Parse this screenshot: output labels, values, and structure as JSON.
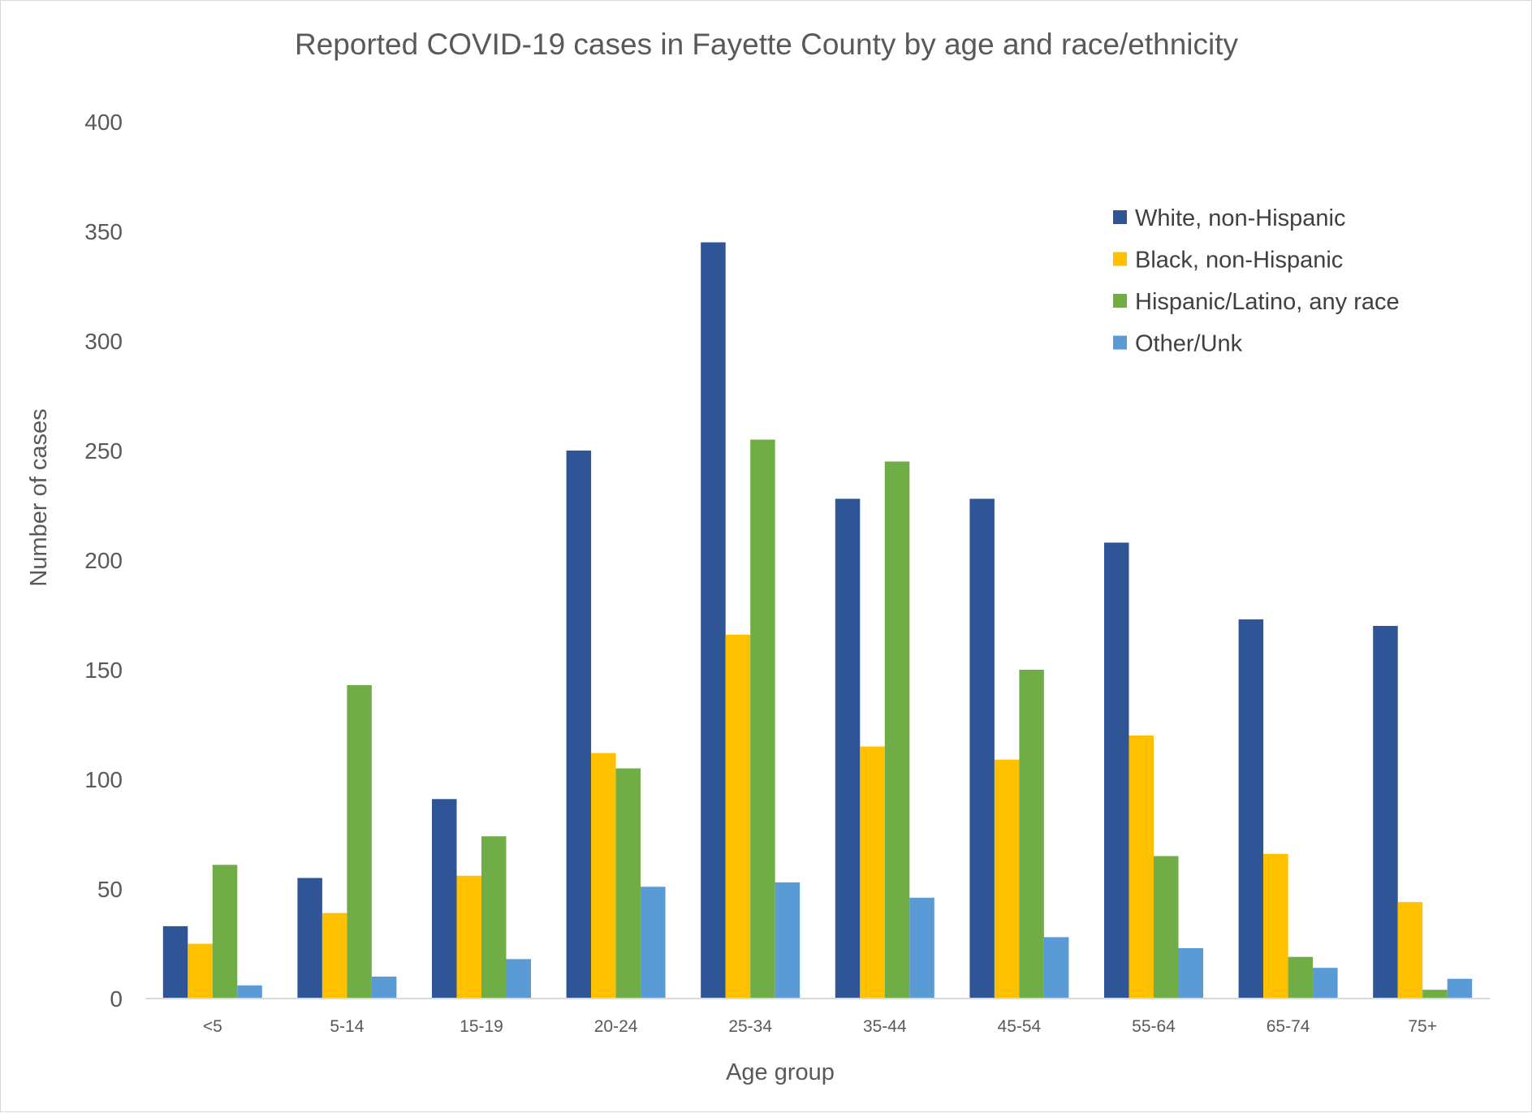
{
  "chart_data": {
    "type": "bar",
    "title": "Reported COVID-19 cases in Fayette County by age and race/ethnicity",
    "xlabel": "Age group",
    "ylabel": "Number of cases",
    "ylim": [
      0,
      400
    ],
    "yticks": [
      0,
      50,
      100,
      150,
      200,
      250,
      300,
      350,
      400
    ],
    "grid": false,
    "legend_position": "top-right",
    "categories": [
      "<5",
      "5-14",
      "15-19",
      "20-24",
      "25-34",
      "35-44",
      "45-54",
      "55-64",
      "65-74",
      "75+"
    ],
    "series": [
      {
        "name": "White, non-Hispanic",
        "color": "#2f5597",
        "values": [
          33,
          55,
          91,
          250,
          345,
          228,
          228,
          208,
          173,
          170
        ]
      },
      {
        "name": "Black, non-Hispanic",
        "color": "#ffc000",
        "values": [
          25,
          39,
          56,
          112,
          166,
          115,
          109,
          120,
          66,
          44
        ]
      },
      {
        "name": "Hispanic/Latino, any race",
        "color": "#70ad47",
        "values": [
          61,
          143,
          74,
          105,
          255,
          245,
          150,
          65,
          19,
          4
        ]
      },
      {
        "name": "Other/Unk",
        "color": "#5b9bd5",
        "values": [
          6,
          10,
          18,
          51,
          53,
          46,
          28,
          23,
          14,
          9
        ]
      }
    ]
  }
}
